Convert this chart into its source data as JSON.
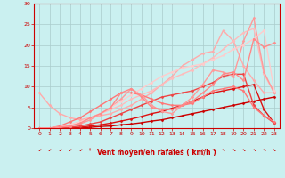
{
  "background_color": "#caf0f0",
  "grid_color": "#aacccc",
  "xlabel": "Vent moyen/en rafales ( km/h )",
  "xlim": [
    -0.5,
    23.5
  ],
  "ylim": [
    0,
    30
  ],
  "yticks": [
    0,
    5,
    10,
    15,
    20,
    25,
    30
  ],
  "xticks": [
    0,
    1,
    2,
    3,
    4,
    5,
    6,
    7,
    8,
    9,
    10,
    11,
    12,
    13,
    14,
    15,
    16,
    17,
    18,
    19,
    20,
    21,
    22,
    23
  ],
  "series": [
    {
      "comment": "dark red near-horizontal line (bottom, almost linear 0-8)",
      "x": [
        0,
        1,
        2,
        3,
        4,
        5,
        6,
        7,
        8,
        9,
        10,
        11,
        12,
        13,
        14,
        15,
        16,
        17,
        18,
        19,
        20,
        21,
        22,
        23
      ],
      "y": [
        0,
        0,
        0,
        0,
        0,
        0.2,
        0.4,
        0.5,
        0.8,
        1.0,
        1.3,
        1.7,
        2.0,
        2.5,
        3.0,
        3.5,
        4.0,
        4.5,
        5.0,
        5.5,
        6.0,
        6.5,
        7.0,
        7.5
      ],
      "color": "#cc0000",
      "lw": 1.0,
      "marker": "D",
      "ms": 1.5
    },
    {
      "comment": "dark red slightly steeper linear",
      "x": [
        0,
        1,
        2,
        3,
        4,
        5,
        6,
        7,
        8,
        9,
        10,
        11,
        12,
        13,
        14,
        15,
        16,
        17,
        18,
        19,
        20,
        21,
        22,
        23
      ],
      "y": [
        0,
        0,
        0,
        0,
        0.2,
        0.5,
        0.8,
        1.2,
        1.7,
        2.2,
        2.8,
        3.5,
        4.0,
        4.8,
        5.5,
        6.5,
        7.5,
        8.5,
        9.0,
        9.5,
        10.0,
        10.5,
        4.5,
        1.2
      ],
      "color": "#dd1111",
      "lw": 1.0,
      "marker": "D",
      "ms": 1.5
    },
    {
      "comment": "medium red steeper then drops",
      "x": [
        0,
        1,
        2,
        3,
        4,
        5,
        6,
        7,
        8,
        9,
        10,
        11,
        12,
        13,
        14,
        15,
        16,
        17,
        18,
        19,
        20,
        21,
        22,
        23
      ],
      "y": [
        0,
        0,
        0,
        0.2,
        0.5,
        1.0,
        1.5,
        2.5,
        3.5,
        4.5,
        5.5,
        6.5,
        7.5,
        8.0,
        8.5,
        9.0,
        10.0,
        11.0,
        12.5,
        13.0,
        13.0,
        5.5,
        3.0,
        1.2
      ],
      "color": "#ee4444",
      "lw": 1.0,
      "marker": "D",
      "ms": 1.5
    },
    {
      "comment": "light pink starts high at 0 drops then rises",
      "x": [
        0,
        1,
        2,
        3,
        4,
        5,
        6,
        7,
        8,
        9,
        10,
        11,
        12,
        13,
        14,
        15,
        16,
        17,
        18,
        19,
        20,
        21,
        22,
        23
      ],
      "y": [
        8.5,
        5.5,
        3.5,
        2.5,
        2.0,
        2.5,
        3.0,
        3.5,
        4.5,
        5.5,
        7.0,
        8.5,
        10.5,
        12.5,
        15.0,
        16.5,
        18.0,
        18.5,
        23.5,
        21.0,
        15.0,
        11.5,
        8.5,
        8.5
      ],
      "color": "#ffaaaa",
      "lw": 1.0,
      "marker": "D",
      "ms": 1.5
    },
    {
      "comment": "medium pink humped",
      "x": [
        0,
        1,
        2,
        3,
        4,
        5,
        6,
        7,
        8,
        9,
        10,
        11,
        12,
        13,
        14,
        15,
        16,
        17,
        18,
        19,
        20,
        21,
        22,
        23
      ],
      "y": [
        0,
        0,
        0.5,
        1.5,
        2.5,
        4.0,
        5.5,
        7.0,
        8.5,
        8.5,
        8.0,
        7.0,
        6.0,
        5.5,
        5.5,
        6.0,
        7.5,
        9.0,
        9.5,
        10.0,
        9.0,
        5.0,
        3.0,
        1.5
      ],
      "color": "#ff7777",
      "lw": 1.0,
      "marker": "D",
      "ms": 1.5
    },
    {
      "comment": "light pink mostly linear then peak 21",
      "x": [
        0,
        1,
        2,
        3,
        4,
        5,
        6,
        7,
        8,
        9,
        10,
        11,
        12,
        13,
        14,
        15,
        16,
        17,
        18,
        19,
        20,
        21,
        22,
        23
      ],
      "y": [
        0,
        0,
        0.2,
        0.8,
        1.5,
        2.5,
        3.5,
        4.5,
        5.5,
        7.0,
        8.0,
        9.0,
        10.5,
        12.0,
        13.0,
        14.0,
        15.5,
        17.0,
        19.0,
        21.0,
        23.0,
        24.0,
        13.0,
        8.5
      ],
      "color": "#ffbbbb",
      "lw": 1.0,
      "marker": "D",
      "ms": 1.5
    },
    {
      "comment": "light salmon peak at 21 then drops",
      "x": [
        0,
        1,
        2,
        3,
        4,
        5,
        6,
        7,
        8,
        9,
        10,
        11,
        12,
        13,
        14,
        15,
        16,
        17,
        18,
        19,
        20,
        21,
        22,
        23
      ],
      "y": [
        0,
        0,
        0.2,
        0.5,
        1.0,
        2.0,
        3.5,
        5.0,
        7.0,
        9.5,
        8.0,
        5.5,
        4.0,
        3.5,
        5.5,
        7.5,
        10.5,
        14.0,
        13.5,
        12.5,
        21.0,
        26.5,
        13.5,
        8.5
      ],
      "color": "#ff9999",
      "lw": 1.0,
      "marker": "D",
      "ms": 1.5
    },
    {
      "comment": "very light pink nearly linear upward to 23",
      "x": [
        0,
        1,
        2,
        3,
        4,
        5,
        6,
        7,
        8,
        9,
        10,
        11,
        12,
        13,
        14,
        15,
        16,
        17,
        18,
        19,
        20,
        21,
        22,
        23
      ],
      "y": [
        0,
        0,
        0.3,
        0.8,
        1.5,
        2.5,
        3.5,
        5.0,
        6.5,
        8.0,
        9.5,
        11.0,
        12.5,
        13.5,
        14.5,
        15.0,
        15.5,
        16.5,
        17.5,
        19.0,
        20.0,
        21.5,
        23.5,
        9.0
      ],
      "color": "#ffcccc",
      "lw": 1.0,
      "marker": "D",
      "ms": 1.5
    },
    {
      "comment": "pink wiggly peak at 9 dip then 20",
      "x": [
        0,
        1,
        2,
        3,
        4,
        5,
        6,
        7,
        8,
        9,
        10,
        11,
        12,
        13,
        14,
        15,
        16,
        17,
        18,
        19,
        20,
        21,
        22,
        23
      ],
      "y": [
        0,
        0,
        0.3,
        0.5,
        1.2,
        2.5,
        3.5,
        5.0,
        8.5,
        9.5,
        7.5,
        5.0,
        4.5,
        4.5,
        5.5,
        6.5,
        8.5,
        10.5,
        13.0,
        13.5,
        11.5,
        21.5,
        19.5,
        20.5
      ],
      "color": "#ff8888",
      "lw": 1.0,
      "marker": "D",
      "ms": 1.5
    }
  ],
  "wind_arrows": [
    {
      "x": 0,
      "char": "↙"
    },
    {
      "x": 1,
      "char": "↙"
    },
    {
      "x": 2,
      "char": "↙"
    },
    {
      "x": 3,
      "char": "↙"
    },
    {
      "x": 4,
      "char": "↙"
    },
    {
      "x": 5,
      "char": "↑"
    },
    {
      "x": 6,
      "char": "↗"
    },
    {
      "x": 7,
      "char": "→"
    },
    {
      "x": 8,
      "char": "↘"
    },
    {
      "x": 9,
      "char": "↘"
    },
    {
      "x": 10,
      "char": "↘"
    },
    {
      "x": 11,
      "char": "↘"
    },
    {
      "x": 12,
      "char": "↘"
    },
    {
      "x": 13,
      "char": "↘"
    },
    {
      "x": 14,
      "char": "↘"
    },
    {
      "x": 15,
      "char": "↘"
    },
    {
      "x": 16,
      "char": "↘"
    },
    {
      "x": 17,
      "char": "↘"
    },
    {
      "x": 18,
      "char": "↘"
    },
    {
      "x": 19,
      "char": "↘"
    },
    {
      "x": 20,
      "char": "↘"
    },
    {
      "x": 21,
      "char": "↘"
    },
    {
      "x": 22,
      "char": "↘"
    },
    {
      "x": 23,
      "char": "↘"
    }
  ]
}
